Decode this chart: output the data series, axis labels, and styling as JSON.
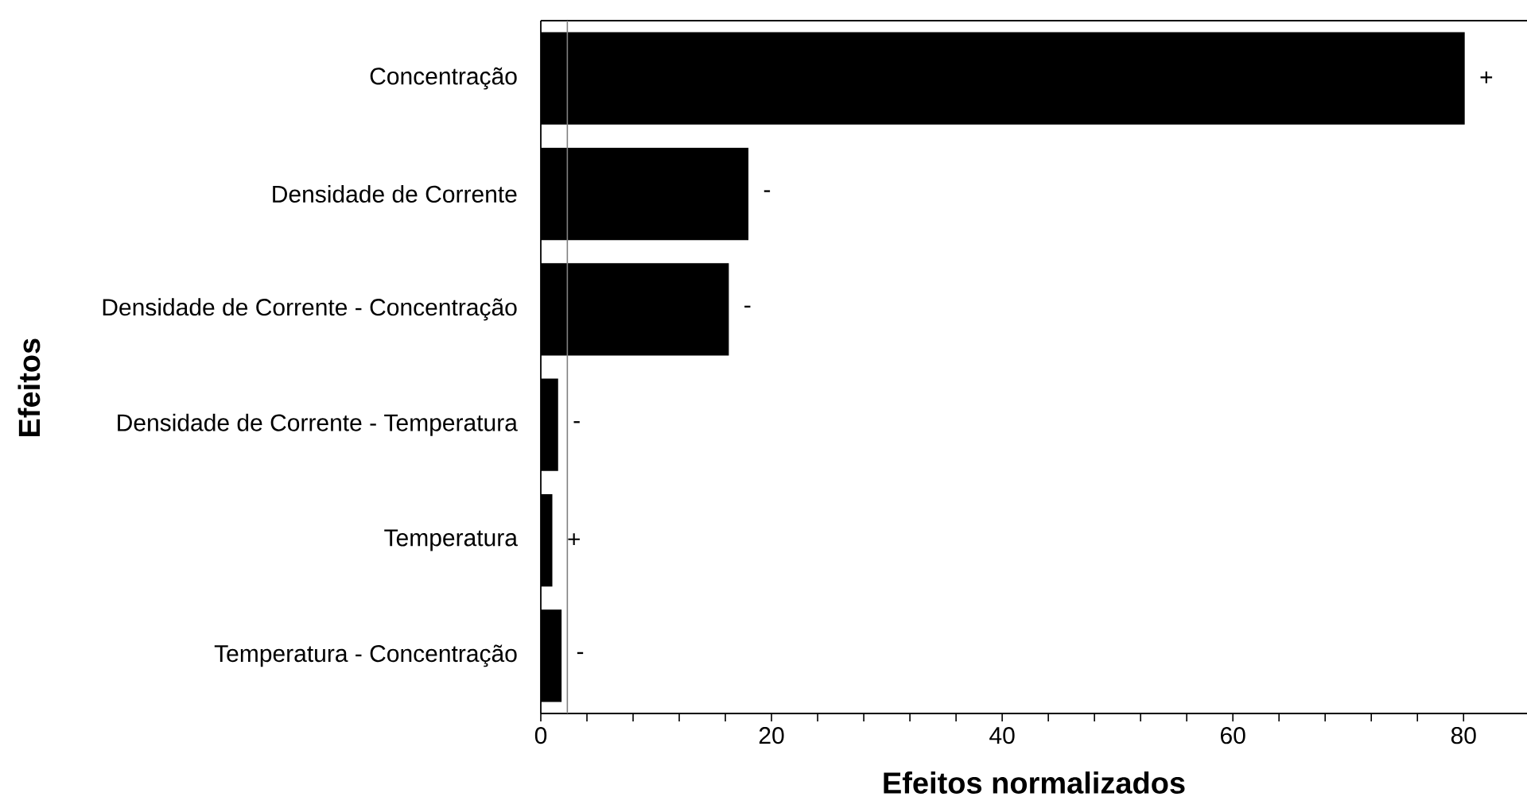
{
  "chart_data": {
    "type": "bar",
    "orientation": "horizontal",
    "xlabel": "Efeitos normalizados",
    "ylabel": "Efeitos",
    "categories": [
      "Concentração",
      "Densidade de Corrente",
      "Densidade de Corrente - Concentração",
      "Densidade de Corrente - Temperatura",
      "Temperatura",
      "Temperatura - Concentração"
    ],
    "values": [
      80.1,
      18.0,
      16.3,
      1.5,
      1.0,
      1.8
    ],
    "value_labels": [
      "+",
      "-",
      "-",
      "-",
      "+",
      "-"
    ],
    "color": "#000000",
    "xlim": [
      0,
      85.5
    ],
    "xticks": [
      0,
      20,
      40,
      60,
      80
    ],
    "ref_lines": [
      {
        "axis": "x",
        "value": 2.3,
        "color": "#808080"
      }
    ]
  }
}
